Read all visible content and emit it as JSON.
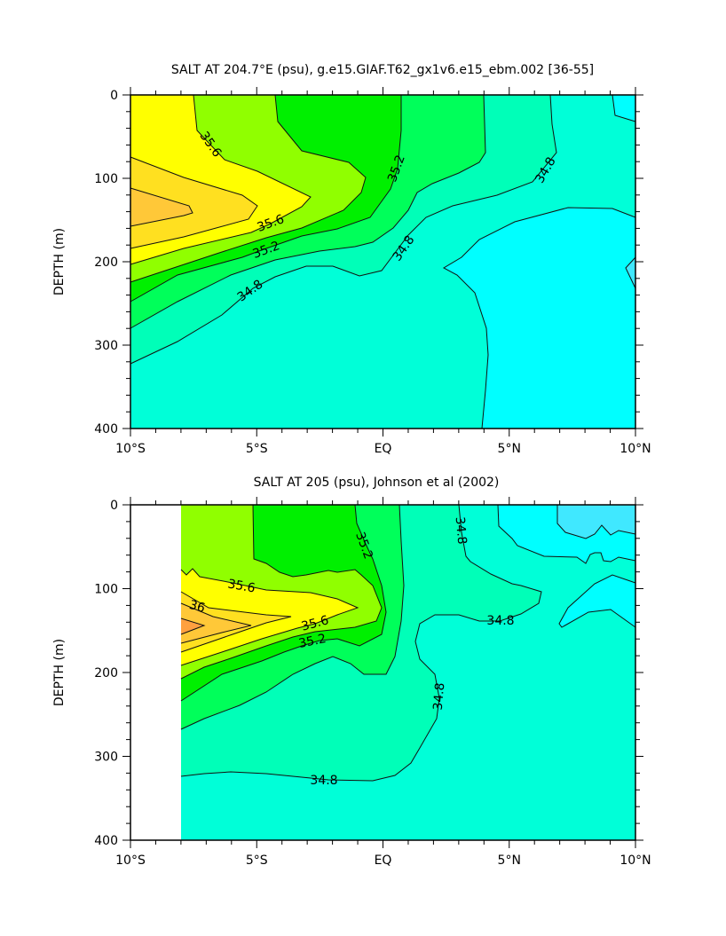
{
  "chart_data": [
    {
      "type": "contour",
      "title": "SALT AT 204.7°E (psu), g.e15.GIAF.T62_gx1v6.e15_ebm.002 [36-55]",
      "ylabel": "DEPTH (m)",
      "xlim": [
        -10,
        10
      ],
      "ylim": [
        400,
        0
      ],
      "xtick_labels": [
        "10°S",
        "5°S",
        "EQ",
        "5°N",
        "10°N"
      ],
      "ytick_labels": [
        "0",
        "100",
        "200",
        "300",
        "400"
      ],
      "levels": [
        34.6,
        34.8,
        35.0,
        35.2,
        35.4,
        35.6,
        35.8,
        36.0
      ],
      "contour_labels": [
        "35.6",
        "35.6",
        "35.2",
        "34.8",
        "35.2",
        "34.8",
        "34.8"
      ]
    },
    {
      "type": "contour",
      "title": "SALT AT 205 (psu), Johnson et al (2002)",
      "ylabel": "DEPTH (m)",
      "xlim": [
        -10,
        10
      ],
      "ylim": [
        400,
        0
      ],
      "data_xrange": [
        -8,
        10
      ],
      "xtick_labels": [
        "10°S",
        "5°S",
        "EQ",
        "5°N",
        "10°N"
      ],
      "ytick_labels": [
        "0",
        "100",
        "200",
        "300",
        "400"
      ],
      "levels": [
        34.6,
        34.8,
        35.0,
        35.2,
        35.4,
        35.6,
        35.8,
        36.0,
        36.2
      ],
      "contour_labels": [
        "35.6",
        "36",
        "35.6",
        "35.2",
        "35.2",
        "34.8",
        "34.8",
        "34.8",
        "34.8"
      ]
    }
  ],
  "colors": {
    "below_34_4": "#40e8ff",
    "below_34_6": "#00ffff",
    "34_6_to_34_8": "#00ffd8",
    "34_8_to_35_0": "#00ffb8",
    "35_0_to_35_2": "#00ff5a",
    "35_2_to_35_4": "#00f000",
    "35_4_to_35_6": "#90ff00",
    "35_6_to_35_8": "#ffff00",
    "35_8_to_36_0": "#ffe020",
    "36_0_to_36_2": "#ffc838",
    "above_36_2": "#ffa040"
  }
}
